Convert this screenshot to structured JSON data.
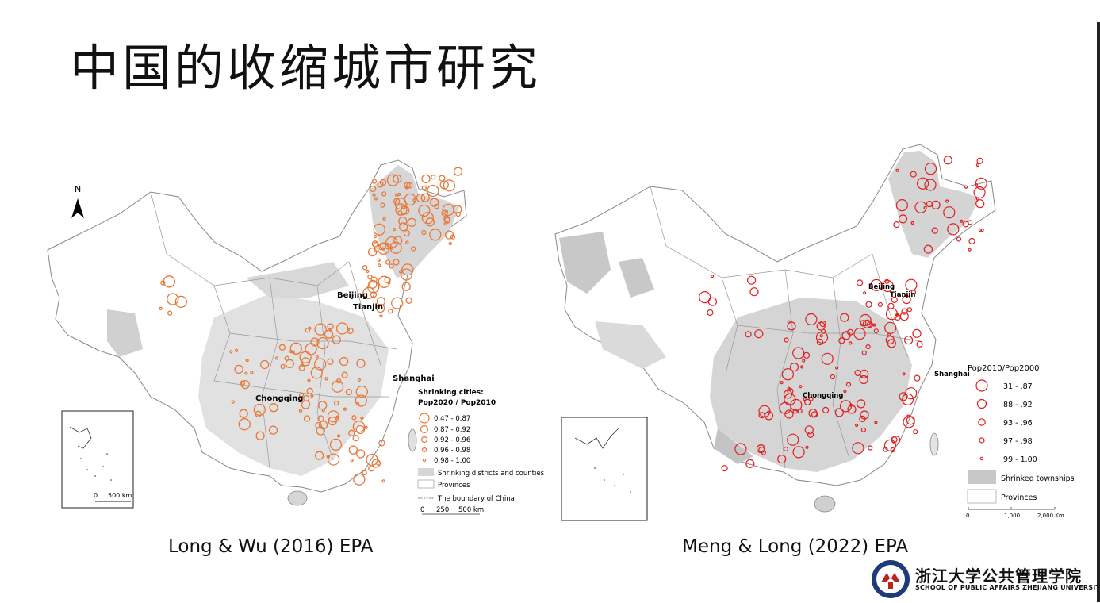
{
  "slide": {
    "title": "中国的收缩城市研究"
  },
  "map_left": {
    "north_label": "N",
    "city_labels": [
      "Beijing",
      "Tianjin",
      "Shanghai",
      "Chongqing"
    ],
    "legend_title_line1": "Shrinking cities:",
    "legend_title_line2": "Pop2020 / Pop2010",
    "legend_classes": [
      "0.47 - 0.87",
      "0.87 - 0.92",
      "0.92 - 0.96",
      "0.96 - 0.98",
      "0.98 - 1.00"
    ],
    "legend_areas": [
      "Shrinking districts and counties",
      "Provinces",
      "The boundary of China"
    ],
    "inset_scale": {
      "zero": "0",
      "label": "500 km"
    },
    "scale": {
      "zero": "0",
      "mid": "250",
      "label": "500 km"
    },
    "symbol_color": "#e8783a",
    "caption": "Long & Wu (2016) EPA"
  },
  "map_right": {
    "city_labels": [
      "Beijing",
      "Tianjin",
      "Shanghai",
      "Chongqing"
    ],
    "legend_title": "Pop2010/Pop2000",
    "legend_classes": [
      ".31 - .87",
      ".88 - .92",
      ".93 - .96",
      ".97 - .98",
      ".99 - 1.00"
    ],
    "legend_areas": [
      "Shrinked townships",
      "Provinces"
    ],
    "scale": {
      "zero": "0",
      "mid": "1,000",
      "label": "2,000 Km"
    },
    "symbol_color": "#e02020",
    "caption": "Meng & Long (2022) EPA"
  },
  "logo": {
    "name_cn": "浙江大学公共管理学院",
    "name_en": "SCHOOL OF PUBLIC AFFAIRS  ZHEJIANG UNIVERSITY"
  }
}
